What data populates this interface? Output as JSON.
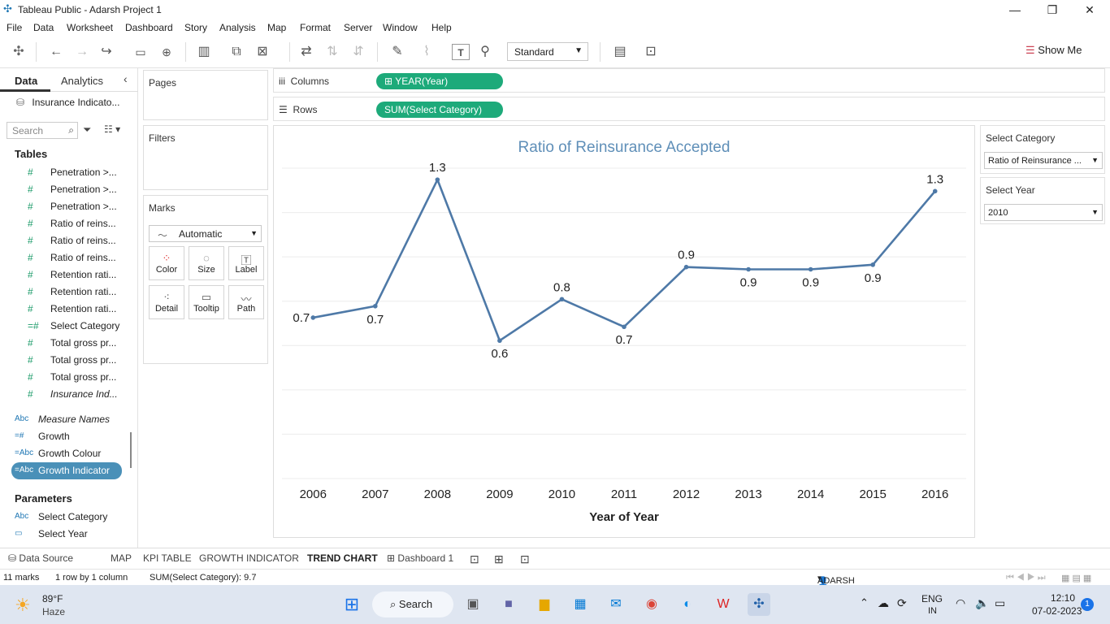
{
  "window": {
    "title": "Tableau Public - Adarsh Project 1"
  },
  "menu": [
    "File",
    "Data",
    "Worksheet",
    "Dashboard",
    "Story",
    "Analysis",
    "Map",
    "Format",
    "Server",
    "Window",
    "Help"
  ],
  "toolbar": {
    "fit": "Standard",
    "show_me": "Show Me"
  },
  "datapane": {
    "tabs": [
      "Data",
      "Analytics"
    ],
    "datasource": "Insurance Indicato...",
    "search_placeholder": "Search",
    "tables_heading": "Tables",
    "measures": [
      {
        "icon": "#",
        "name": "Penetration >..."
      },
      {
        "icon": "#",
        "name": "Penetration >..."
      },
      {
        "icon": "#",
        "name": "Penetration >..."
      },
      {
        "icon": "#",
        "name": "Ratio of reins..."
      },
      {
        "icon": "#",
        "name": "Ratio of reins..."
      },
      {
        "icon": "#",
        "name": "Ratio of reins..."
      },
      {
        "icon": "#",
        "name": "Retention rati..."
      },
      {
        "icon": "#",
        "name": "Retention rati..."
      },
      {
        "icon": "#",
        "name": "Retention rati..."
      },
      {
        "icon": "=#",
        "name": "Select Category"
      },
      {
        "icon": "#",
        "name": "Total gross pr..."
      },
      {
        "icon": "#",
        "name": "Total gross pr..."
      },
      {
        "icon": "#",
        "name": "Total gross pr..."
      },
      {
        "icon": "#",
        "name": "Insurance Ind..."
      }
    ],
    "dims": [
      {
        "icon": "Abc",
        "name": "Measure Names"
      },
      {
        "icon": "=#",
        "name": "Growth"
      },
      {
        "icon": "=Abc",
        "name": "Growth Colour"
      },
      {
        "icon": "=Abc",
        "name": "Growth Indicator"
      }
    ],
    "params_heading": "Parameters",
    "params": [
      {
        "icon": "Abc",
        "name": "Select Category"
      },
      {
        "icon": "▭",
        "name": "Select Year"
      }
    ]
  },
  "cards": {
    "pages": "Pages",
    "filters": "Filters",
    "marks": "Marks",
    "marks_type": "Automatic",
    "mark_buttons": [
      "Color",
      "Size",
      "Label",
      "Detail",
      "Tooltip",
      "Path"
    ]
  },
  "shelves": {
    "columns_label": "Columns",
    "columns_pill": "YEAR(Year)",
    "rows_label": "Rows",
    "rows_pill": "SUM(Select Category)"
  },
  "right": {
    "cat_label": "Select Category",
    "cat_value": "Ratio of Reinsurance ...",
    "year_label": "Select Year",
    "year_value": "2010"
  },
  "sheets": {
    "datasource": "Data Source",
    "tabs": [
      "MAP",
      "KPI TABLE",
      "GROWTH INDICATOR",
      "TREND CHART",
      "Dashboard 1"
    ]
  },
  "status": {
    "marks": "11 marks",
    "dims": "1 row by 1 column",
    "sum": "SUM(Select Category): 9.7",
    "user": "ADARSH DUBEY"
  },
  "taskbar": {
    "temp": "89°F",
    "weather": "Haze",
    "search": "Search",
    "lang": "ENG",
    "region": "IN",
    "time": "12:10",
    "date": "07-02-2023",
    "badge": "1"
  },
  "chart_data": {
    "type": "line",
    "title": "Ratio of Reinsurance Accepted",
    "xlabel": "Year of Year",
    "ylabel": "",
    "categories": [
      "2006",
      "2007",
      "2008",
      "2009",
      "2010",
      "2011",
      "2012",
      "2013",
      "2014",
      "2015",
      "2016"
    ],
    "values": [
      0.7,
      0.75,
      1.3,
      0.6,
      0.78,
      0.66,
      0.92,
      0.91,
      0.91,
      0.93,
      1.25
    ],
    "labels": [
      "0.7",
      "0.7",
      "1.3",
      "0.6",
      "0.8",
      "0.7",
      "0.9",
      "0.9",
      "0.9",
      "0.9",
      "1.3"
    ],
    "label_positions": [
      "left",
      "below",
      "above",
      "below",
      "above",
      "below",
      "above",
      "below",
      "below",
      "below",
      "above"
    ],
    "ylim": [
      0,
      1.35
    ],
    "grid": true,
    "color": "#4e79a7"
  }
}
